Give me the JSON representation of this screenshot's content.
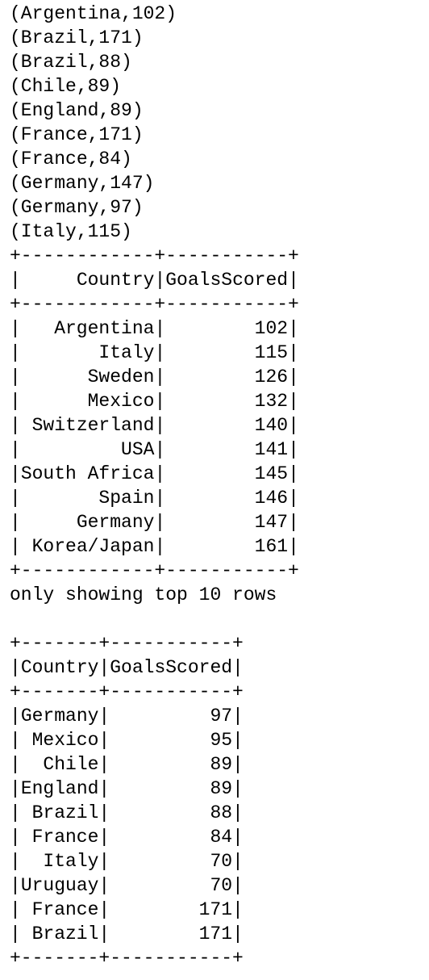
{
  "output_lines": [
    "(Argentina,102)",
    "(Brazil,171)",
    "(Brazil,88)",
    "(Chile,89)",
    "(England,89)",
    "(France,171)",
    "(France,84)",
    "(Germany,147)",
    "(Germany,97)",
    "(Italy,115)"
  ],
  "table_1": {
    "columns": [
      "Country",
      "GoalsScored"
    ],
    "rows": [
      [
        "Argentina",
        102
      ],
      [
        "Italy",
        115
      ],
      [
        "Sweden",
        126
      ],
      [
        "Mexico",
        132
      ],
      [
        "Switzerland",
        140
      ],
      [
        "USA",
        141
      ],
      [
        "South Africa",
        145
      ],
      [
        "Spain",
        146
      ],
      [
        "Germany",
        147
      ],
      [
        "Korea/Japan",
        161
      ]
    ],
    "footer": "only showing top 10 rows"
  },
  "table_2": {
    "columns": [
      "Country",
      "GoalsScored"
    ],
    "rows": [
      [
        "Germany",
        97
      ],
      [
        "Mexico",
        95
      ],
      [
        "Chile",
        89
      ],
      [
        "England",
        89
      ],
      [
        "Brazil",
        88
      ],
      [
        "France",
        84
      ],
      [
        "Italy",
        70
      ],
      [
        "Uruguay",
        70
      ],
      [
        "France",
        171
      ],
      [
        "Brazil",
        171
      ]
    ]
  }
}
